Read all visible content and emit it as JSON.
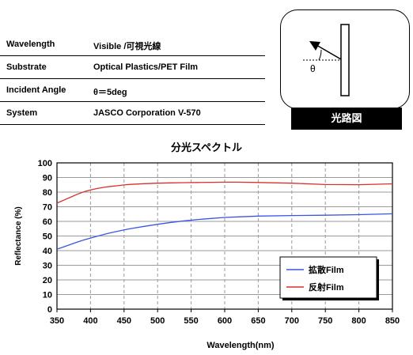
{
  "info_table": [
    {
      "label": "Wavelength",
      "value": "Visible /可視光線"
    },
    {
      "label": "Substrate",
      "value": "Optical Plastics/PET Film"
    },
    {
      "label": "Incident Angle",
      "value": "θ＝5deg"
    },
    {
      "label": "System",
      "value": "JASCO Corporation  V-570"
    }
  ],
  "diagram": {
    "angle_symbol": "θ",
    "caption": "光路図"
  },
  "chart_data": {
    "type": "line",
    "title": "分光スペクトル",
    "xlabel": "Wavelength(nm)",
    "ylabel": "Reflectance (%)",
    "xlim": [
      350,
      850
    ],
    "ylim": [
      0,
      100
    ],
    "xticks": [
      350,
      400,
      450,
      500,
      550,
      600,
      650,
      700,
      750,
      800,
      850
    ],
    "yticks": [
      0,
      10,
      20,
      30,
      40,
      50,
      60,
      70,
      80,
      90,
      100
    ],
    "legend_position": "bottom-right",
    "grid": true,
    "x": [
      350,
      360,
      370,
      380,
      390,
      400,
      410,
      420,
      430,
      440,
      450,
      460,
      480,
      500,
      520,
      540,
      560,
      580,
      600,
      620,
      650,
      700,
      750,
      800,
      850
    ],
    "series": [
      {
        "name": "拡散Film",
        "color": "#3a55e6",
        "values": [
          41,
          42.6,
          44.2,
          45.8,
          47.3,
          48.6,
          49.9,
          51.1,
          52.2,
          53.2,
          54.2,
          55.1,
          56.6,
          58,
          59.3,
          60.4,
          61.3,
          62,
          62.7,
          63.1,
          63.6,
          64,
          64.2,
          64.6,
          65.2
        ]
      },
      {
        "name": "反射Film",
        "color": "#d8312a",
        "values": [
          72.5,
          74.5,
          76.5,
          78.5,
          80.2,
          81.5,
          82.5,
          83.3,
          83.9,
          84.4,
          84.9,
          85.3,
          85.8,
          86.1,
          86.3,
          86.5,
          86.6,
          86.7,
          86.8,
          86.8,
          86.6,
          86.1,
          85.2,
          85.1,
          85.7
        ]
      }
    ]
  }
}
